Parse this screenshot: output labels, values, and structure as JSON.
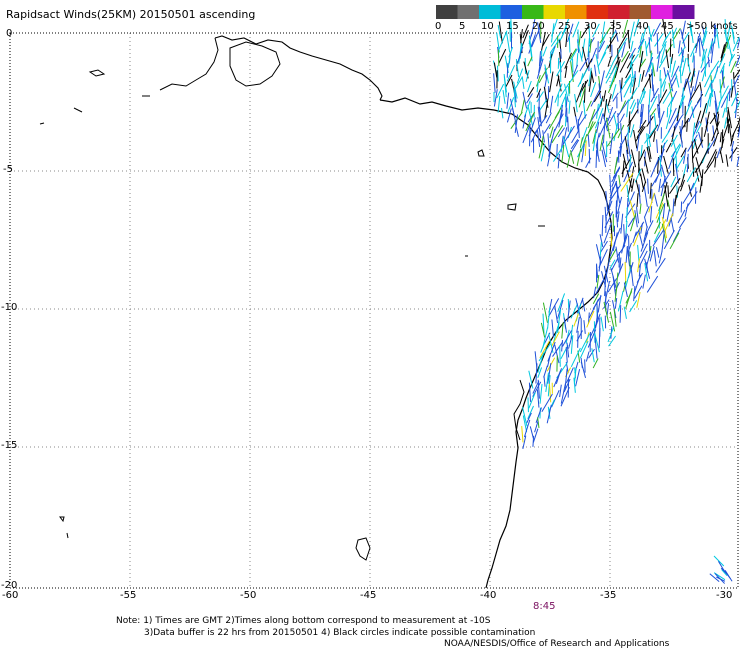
{
  "title": "Rapidsact Winds(25KM) 20150501 ascending",
  "colorbar": {
    "labels": [
      "0",
      "5",
      "10",
      "15",
      "20",
      "25",
      "30",
      "35",
      "40",
      "45",
      ">50 knots"
    ],
    "colors": [
      "#404040",
      "#707070",
      "#00bcd8",
      "#1e60e0",
      "#38b818",
      "#e8d800",
      "#f09000",
      "#e03010",
      "#d02030",
      "#a05a30",
      "#e020e0",
      "#6a10a0"
    ]
  },
  "axes": {
    "lon_ticks": [
      "-60",
      "-55",
      "-50",
      "-45",
      "-40",
      "-35",
      "-30"
    ],
    "lat_ticks": [
      "0",
      "-5",
      "-10",
      "-15",
      "-20"
    ]
  },
  "time_label": "8:45",
  "notes": {
    "line1": "Note: 1) Times are GMT 2)Times along bottom correspond to measurement at -10S",
    "line2": "3)Data buffer is 22 hrs from 20150501 4) Black circles indicate possible contamination",
    "line3": "NOAA/NESDIS/Office of Research and Applications"
  }
}
